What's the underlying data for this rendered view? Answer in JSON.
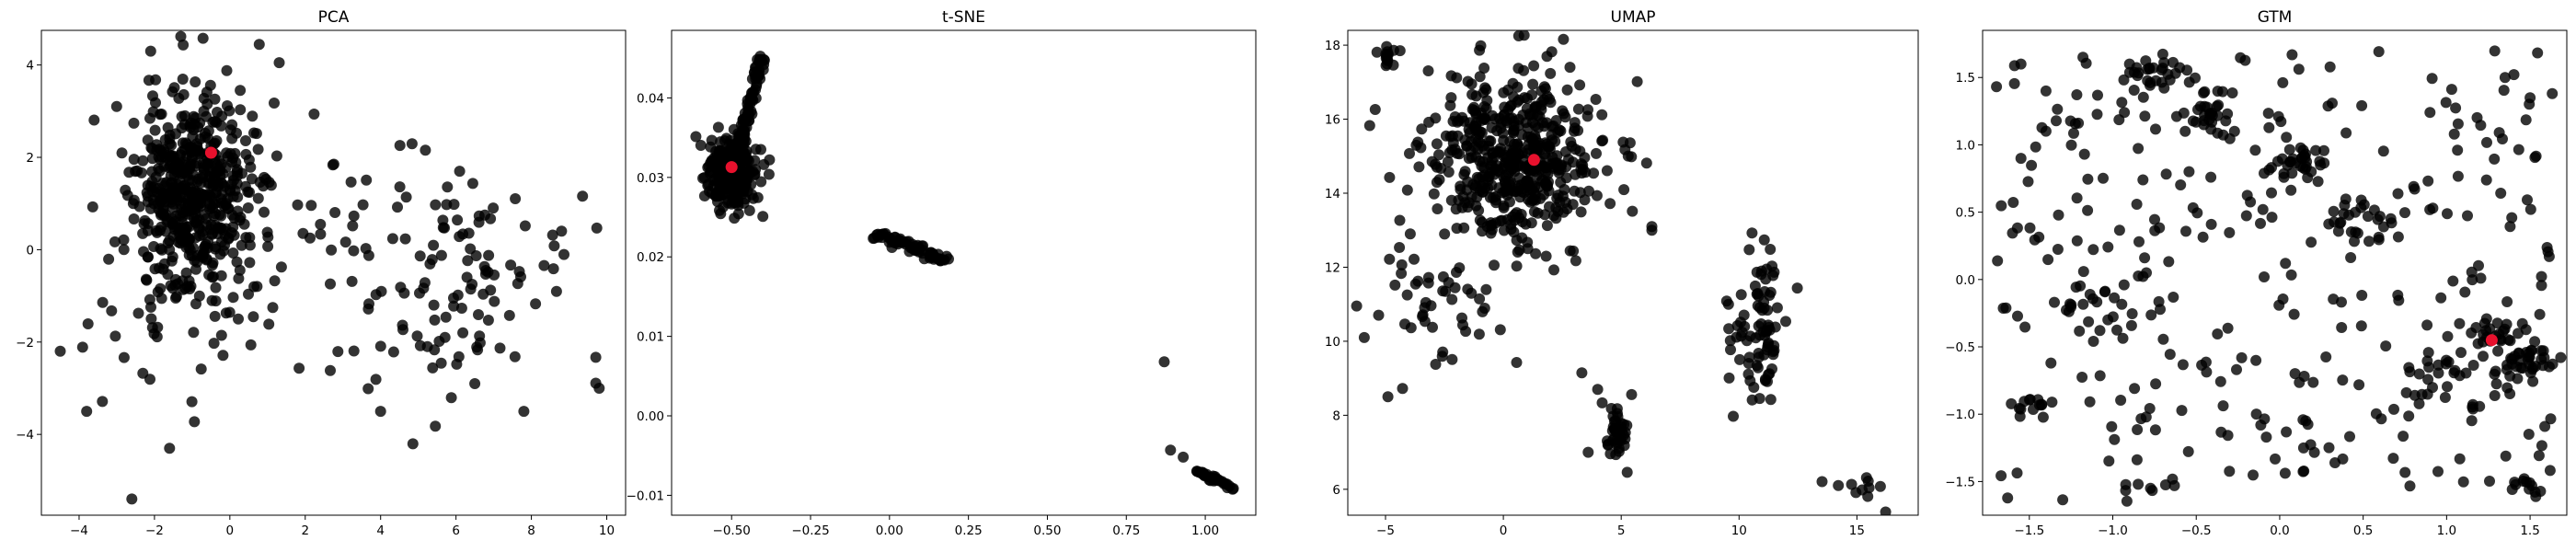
{
  "figure": {
    "background": "#ffffff"
  },
  "chart_data": [
    {
      "type": "scatter",
      "title": "PCA",
      "xlim": [
        -5.0,
        10.5
      ],
      "ylim": [
        -5.75,
        4.75
      ],
      "xticks": [
        -4,
        -2,
        0,
        2,
        4,
        6,
        8,
        10
      ],
      "yticks": [
        -4,
        -2,
        0,
        2,
        4
      ],
      "point_color": "#000000",
      "highlight_color": "#e8112d",
      "highlight": [
        -0.5,
        2.1
      ],
      "clusters": [
        {
          "cx": -1.0,
          "cy": 1.3,
          "sx": 0.75,
          "sy": 1.05,
          "n": 520,
          "seed": 11
        },
        {
          "cx": -1.5,
          "cy": -0.8,
          "sx": 1.1,
          "sy": 1.2,
          "n": 60,
          "seed": 12
        },
        {
          "cx": 5.6,
          "cy": -0.6,
          "sx": 1.6,
          "sy": 1.3,
          "n": 110,
          "seed": 13
        },
        {
          "cx": 2.5,
          "cy": 0.4,
          "sx": 1.0,
          "sy": 1.1,
          "n": 35,
          "seed": 14
        }
      ],
      "points": [
        [
          -2.1,
          4.3
        ],
        [
          -2.6,
          -5.4
        ],
        [
          -4.5,
          -2.2
        ],
        [
          -1.6,
          -4.3
        ],
        [
          9.8,
          -3.0
        ],
        [
          8.8,
          0.4
        ],
        [
          6.5,
          -2.9
        ],
        [
          4.0,
          -3.5
        ],
        [
          -3.8,
          -3.5
        ],
        [
          7.8,
          -3.5
        ]
      ]
    },
    {
      "type": "scatter",
      "title": "t-SNE",
      "xlim": [
        -0.69,
        1.16
      ],
      "ylim": [
        -0.0125,
        0.0485
      ],
      "xticks": [
        -0.5,
        -0.25,
        0.0,
        0.25,
        0.5,
        0.75,
        1.0
      ],
      "xtick_labels": [
        "−0.50",
        "−0.25",
        "0.00",
        "0.25",
        "0.50",
        "0.75",
        "1.00"
      ],
      "yticks": [
        -0.01,
        0.0,
        0.01,
        0.02,
        0.03,
        0.04
      ],
      "ytick_labels": [
        "−0.01",
        "0.00",
        "0.01",
        "0.02",
        "0.03",
        "0.04"
      ],
      "point_color": "#000000",
      "highlight_color": "#e8112d",
      "highlight": [
        -0.5,
        0.0313
      ],
      "clusters": [
        {
          "cx": -0.5,
          "cy": 0.0305,
          "sx": 0.04,
          "sy": 0.0022,
          "n": 300,
          "seed": 21
        }
      ],
      "segments": [
        {
          "from": [
            -0.49,
            0.032
          ],
          "to": [
            -0.4,
            0.0455
          ],
          "n": 90,
          "jitter": [
            0.006,
            0.0006
          ],
          "seed": 22
        },
        {
          "from": [
            -0.04,
            0.023
          ],
          "to": [
            0.18,
            0.0195
          ],
          "n": 70,
          "jitter": [
            0.01,
            0.0003
          ],
          "seed": 23
        },
        {
          "from": [
            0.97,
            -0.0068
          ],
          "to": [
            1.1,
            -0.0093
          ],
          "n": 35,
          "jitter": [
            0.004,
            0.0002
          ],
          "seed": 24
        }
      ],
      "points": [
        [
          0.87,
          0.0068
        ],
        [
          0.89,
          -0.0043
        ],
        [
          0.93,
          -0.0052
        ],
        [
          -0.38,
          0.0322
        ]
      ]
    },
    {
      "type": "scatter",
      "title": "UMAP",
      "xlim": [
        -6.6,
        17.6
      ],
      "ylim": [
        5.3,
        18.4
      ],
      "xticks": [
        -5,
        0,
        5,
        10,
        15
      ],
      "yticks": [
        6,
        8,
        10,
        12,
        14,
        16,
        18
      ],
      "point_color": "#000000",
      "highlight_color": "#e8112d",
      "highlight": [
        1.3,
        14.9
      ],
      "clusters": [
        {
          "cx": 0.6,
          "cy": 14.9,
          "sx": 1.9,
          "sy": 1.2,
          "n": 520,
          "seed": 31
        },
        {
          "cx": -2.6,
          "cy": 11.0,
          "sx": 1.6,
          "sy": 0.8,
          "n": 45,
          "seed": 32
        },
        {
          "cx": 10.8,
          "cy": 10.3,
          "sx": 0.6,
          "sy": 1.0,
          "n": 85,
          "seed": 33
        },
        {
          "cx": 4.8,
          "cy": 7.6,
          "sx": 0.25,
          "sy": 0.4,
          "n": 45,
          "seed": 34
        },
        {
          "cx": 15.4,
          "cy": 6.0,
          "sx": 0.6,
          "sy": 0.35,
          "n": 12,
          "seed": 35
        },
        {
          "cx": -5.0,
          "cy": 17.6,
          "sx": 0.3,
          "sy": 0.15,
          "n": 15,
          "seed": 36
        }
      ],
      "points": [
        [
          6.3,
          13.1
        ],
        [
          6.3,
          13.0
        ],
        [
          -4.9,
          8.5
        ],
        [
          3.6,
          7.0
        ],
        [
          4.0,
          8.7
        ],
        [
          -5.9,
          10.1
        ]
      ]
    },
    {
      "type": "scatter",
      "title": "GTM",
      "xlim": [
        -1.78,
        1.72
      ],
      "ylim": [
        -1.75,
        1.85
      ],
      "xticks": [
        -1.5,
        -1.0,
        -0.5,
        0.0,
        0.5,
        1.0,
        1.5
      ],
      "xtick_labels": [
        "−1.5",
        "−1.0",
        "−0.5",
        "0.0",
        "0.5",
        "1.0",
        "1.5"
      ],
      "yticks": [
        -1.5,
        -1.0,
        -0.5,
        0.0,
        0.5,
        1.0,
        1.5
      ],
      "ytick_labels": [
        "−1.5",
        "−1.0",
        "−0.5",
        "0.0",
        "0.5",
        "1.0",
        "1.5"
      ],
      "point_color": "#000000",
      "highlight_color": "#e8112d",
      "highlight": [
        1.27,
        -0.45
      ],
      "uniform": {
        "x": [
          -1.7,
          1.65
        ],
        "y": [
          -1.65,
          1.7
        ],
        "n": 330,
        "seed": 41
      },
      "clusters": [
        {
          "cx": -0.75,
          "cy": 1.55,
          "sx": 0.1,
          "sy": 0.06,
          "n": 28,
          "seed": 42
        },
        {
          "cx": -0.45,
          "cy": 1.2,
          "sx": 0.08,
          "sy": 0.08,
          "n": 25,
          "seed": 43
        },
        {
          "cx": 0.12,
          "cy": 0.85,
          "sx": 0.1,
          "sy": 0.08,
          "n": 30,
          "seed": 44
        },
        {
          "cx": 0.45,
          "cy": 0.45,
          "sx": 0.1,
          "sy": 0.06,
          "n": 20,
          "seed": 45
        },
        {
          "cx": 1.5,
          "cy": -0.6,
          "sx": 0.09,
          "sy": 0.06,
          "n": 32,
          "seed": 46
        },
        {
          "cx": 1.3,
          "cy": -0.4,
          "sx": 0.09,
          "sy": 0.04,
          "n": 18,
          "seed": 47
        },
        {
          "cx": -1.45,
          "cy": -0.95,
          "sx": 0.08,
          "sy": 0.04,
          "n": 12,
          "seed": 48
        },
        {
          "cx": 1.48,
          "cy": -1.55,
          "sx": 0.06,
          "sy": 0.05,
          "n": 12,
          "seed": 49
        },
        {
          "cx": -1.15,
          "cy": -0.25,
          "sx": 0.12,
          "sy": 0.12,
          "n": 18,
          "seed": 50
        },
        {
          "cx": 0.95,
          "cy": -0.75,
          "sx": 0.12,
          "sy": 0.1,
          "n": 22,
          "seed": 51
        }
      ],
      "points": [
        [
          -1.55,
          1.6
        ],
        [
          -1.55,
          0.9
        ],
        [
          -1.4,
          1.4
        ],
        [
          -0.9,
          1.6
        ],
        [
          1.35,
          1.5
        ],
        [
          1.5,
          1.35
        ]
      ]
    }
  ]
}
